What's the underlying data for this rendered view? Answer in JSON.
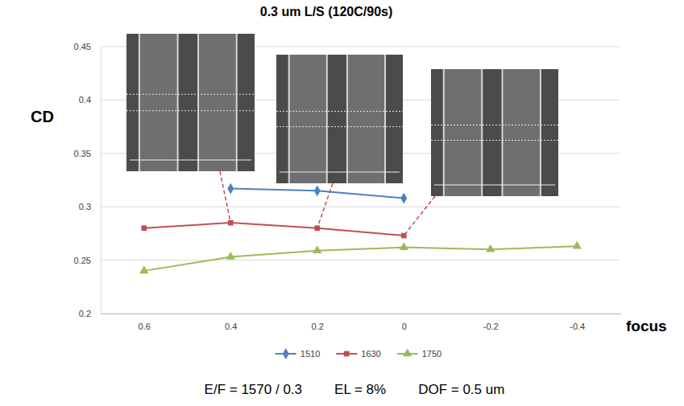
{
  "chart_data": {
    "type": "line",
    "title": "0.3 um L/S (120C/90s)",
    "x_label": "focus",
    "y_label": "CD",
    "x": [
      0.6,
      0.4,
      0.2,
      0,
      -0.2,
      -0.4
    ],
    "xlim": [
      0.7,
      -0.5
    ],
    "xticks": [
      0.6,
      0.4,
      0.2,
      0,
      -0.2,
      -0.4
    ],
    "ylim": [
      0.2,
      0.45
    ],
    "yticks": [
      0.2,
      0.25,
      0.3,
      0.35,
      0.4,
      0.45
    ],
    "grid": true,
    "legend": "bottom",
    "series": [
      {
        "name": "1510",
        "color": "#4f81bd",
        "marker": "diamond",
        "values": [
          null,
          0.317,
          0.315,
          0.308,
          null,
          null
        ]
      },
      {
        "name": "1630",
        "color": "#c0504d",
        "marker": "square",
        "values": [
          0.28,
          0.285,
          0.28,
          0.273,
          null,
          null
        ]
      },
      {
        "name": "1750",
        "color": "#9bbb59",
        "marker": "triangle",
        "values": [
          0.24,
          0.253,
          0.259,
          0.262,
          0.26,
          0.263
        ]
      }
    ],
    "annotations": [
      "E/F = 1570 / 0.3",
      "EL = 8%",
      "DOF = 0.5 um"
    ]
  }
}
